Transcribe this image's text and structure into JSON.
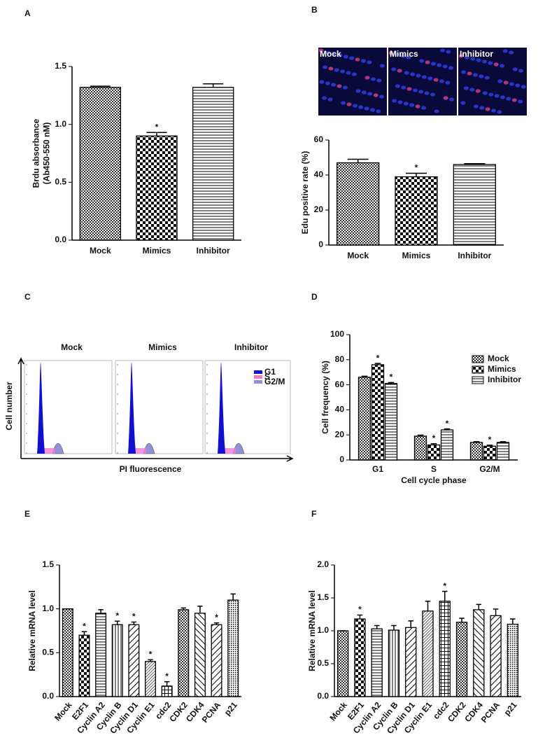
{
  "chart_data": [
    {
      "type": "bar",
      "panel": "A",
      "ylabel": [
        "Brdu absorbance",
        "(Ab450-550 nM)"
      ],
      "categories": [
        "Mock",
        "Mimics",
        "Inhibitor"
      ],
      "values": [
        1.32,
        0.9,
        1.32
      ],
      "errors": [
        0.01,
        0.03,
        0.03
      ],
      "significance": [
        null,
        "*",
        null
      ],
      "pattern": [
        "fine-check",
        "check",
        "hlines"
      ],
      "ylim": [
        0,
        1.5
      ],
      "yticks": [
        {
          "value": 0,
          "label": "0.0"
        },
        0.5,
        {
          "value": 1,
          "label": "1.0"
        },
        1.5
      ]
    },
    {
      "type": "bar",
      "panel": "B",
      "images": [
        "Mock",
        "Mimics",
        "Inhibitor"
      ],
      "ylabel": [
        "Edu positive rate (%)"
      ],
      "categories": [
        "Mock",
        "Mimics",
        "Inhibitor"
      ],
      "values": [
        47,
        39,
        46
      ],
      "errors": [
        2,
        2,
        0.5
      ],
      "significance": [
        null,
        "*",
        null
      ],
      "pattern": [
        "fine-check",
        "check",
        "hlines"
      ],
      "ylim": [
        0,
        60
      ],
      "yticks": [
        0,
        20,
        40,
        60
      ]
    },
    {
      "type": "flow-histogram",
      "panel": "C",
      "subplots": [
        "Mock",
        "Mimics",
        "Inhibitor"
      ],
      "xlabel": "PI fluorescence",
      "ylabel": "Cell number",
      "series": [
        {
          "name": "G1",
          "color": "#1010d0"
        },
        {
          "name": "S",
          "color": "#f07ad0"
        },
        {
          "name": "G2/M",
          "color": "#9090d8"
        }
      ]
    },
    {
      "type": "grouped-bar",
      "panel": "D",
      "xlabel": "Cell cycle phase",
      "ylabel": [
        "Cell frequency (%)"
      ],
      "categories": [
        "G1",
        "S",
        "G2/M"
      ],
      "legend": "upper right",
      "series": [
        {
          "name": "Mock",
          "pattern": "fine-check",
          "values": [
            66,
            19,
            14
          ],
          "errors": [
            0.8,
            0.8,
            0.6
          ],
          "significance": [
            null,
            null,
            null
          ]
        },
        {
          "name": "Mimics",
          "pattern": "check",
          "values": [
            76,
            12,
            11
          ],
          "errors": [
            1,
            1,
            0.8
          ],
          "significance": [
            "*",
            "*",
            "*"
          ]
        },
        {
          "name": "Inhibitor",
          "pattern": "hlines",
          "values": [
            61,
            24,
            14
          ],
          "errors": [
            0.8,
            0.8,
            0.6
          ],
          "significance": [
            "*",
            "*",
            null
          ]
        }
      ],
      "ylim": [
        0,
        100
      ],
      "yticks": [
        0,
        20,
        40,
        60,
        80,
        100
      ]
    },
    {
      "type": "bar",
      "panel": "E",
      "ylabel": [
        "Relative mRNA level"
      ],
      "rotate_labels": true,
      "categories": [
        "Mock",
        "E2F1",
        "Cyclin A2",
        "Cyclin B",
        "Cyclin D1",
        "Cyclin E1",
        "cdc2",
        "CDK2",
        "CDK4",
        "PCNA",
        "p21"
      ],
      "values": [
        1.0,
        0.7,
        0.95,
        0.82,
        0.82,
        0.4,
        0.12,
        0.99,
        0.95,
        0.82,
        1.1
      ],
      "errors": [
        0,
        0.04,
        0.04,
        0.04,
        0.03,
        0.02,
        0.05,
        0.02,
        0.08,
        0.02,
        0.07
      ],
      "significance": [
        null,
        "*",
        null,
        "*",
        "*",
        "*",
        "*",
        null,
        null,
        "*",
        null
      ],
      "pattern": [
        "fine-check",
        "check",
        "hlines",
        "vlines",
        "diag-right",
        "diag-dense",
        "grid",
        "fine-check",
        "diag-left",
        "diag-right",
        "dots"
      ],
      "ylim": [
        0,
        1.5
      ],
      "yticks": [
        {
          "value": 0,
          "label": "0.0"
        },
        0.5,
        {
          "value": 1,
          "label": "1.0"
        },
        1.5
      ]
    },
    {
      "type": "bar",
      "panel": "F",
      "ylabel": [
        "Relative mRNA level"
      ],
      "rotate_labels": true,
      "categories": [
        "Mock",
        "E2F1",
        "Cyclin A2",
        "Cyclin B",
        "Cyclin D1",
        "Cyclin E1",
        "cdc2",
        "CDK2",
        "CDK4",
        "PCNA",
        "p21"
      ],
      "values": [
        1.0,
        1.18,
        1.03,
        1.01,
        1.05,
        1.3,
        1.45,
        1.13,
        1.32,
        1.23,
        1.1
      ],
      "errors": [
        0,
        0.06,
        0.05,
        0.07,
        0.1,
        0.15,
        0.15,
        0.06,
        0.08,
        0.1,
        0.08
      ],
      "significance": [
        null,
        "*",
        null,
        null,
        null,
        null,
        "*",
        null,
        null,
        null,
        null
      ],
      "pattern": [
        "fine-check",
        "check",
        "hlines",
        "vlines",
        "diag-right",
        "diag-dense",
        "grid",
        "fine-check",
        "diag-left",
        "diag-right",
        "dots"
      ],
      "ylim": [
        0,
        2
      ],
      "yticks": [
        {
          "value": 0,
          "label": "0.0"
        },
        0.5,
        {
          "value": 1,
          "label": "1.0"
        },
        1.5,
        {
          "value": 2,
          "label": "2.0"
        }
      ]
    }
  ]
}
